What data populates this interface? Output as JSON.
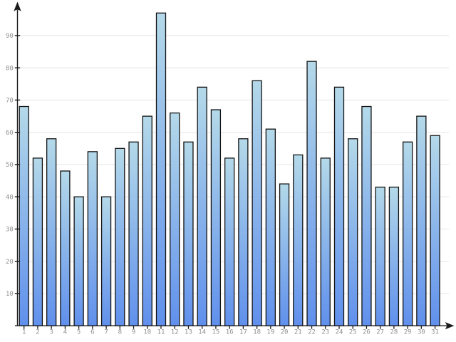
{
  "chart_data": {
    "type": "bar",
    "title": "",
    "xlabel": "",
    "ylabel": "",
    "categories": [
      "1",
      "2",
      "3",
      "4",
      "5",
      "6",
      "7",
      "8",
      "9",
      "10",
      "11",
      "12",
      "13",
      "14",
      "15",
      "16",
      "17",
      "18",
      "19",
      "20",
      "21",
      "22",
      "23",
      "24",
      "25",
      "26",
      "27",
      "28",
      "29",
      "30",
      "31"
    ],
    "values": [
      68,
      52,
      58,
      48,
      40,
      54,
      40,
      55,
      57,
      65,
      97,
      66,
      57,
      74,
      67,
      52,
      58,
      76,
      61,
      44,
      53,
      82,
      52,
      74,
      58,
      68,
      43,
      43,
      57,
      65,
      59
    ],
    "y_ticks": [
      10,
      20,
      30,
      40,
      50,
      60,
      70,
      80,
      90
    ],
    "ylim": [
      0,
      100
    ],
    "grid": true,
    "legend": false,
    "colors": {
      "background": "#ffffff",
      "bar_gradient_top": "#b4d9e9",
      "bar_gradient_bottom": "#6090ec",
      "bar_border": "#121212",
      "axis": "#1a1a1a",
      "gridline": "#e8e8e8",
      "tick_label": "#8f8f8f"
    }
  }
}
